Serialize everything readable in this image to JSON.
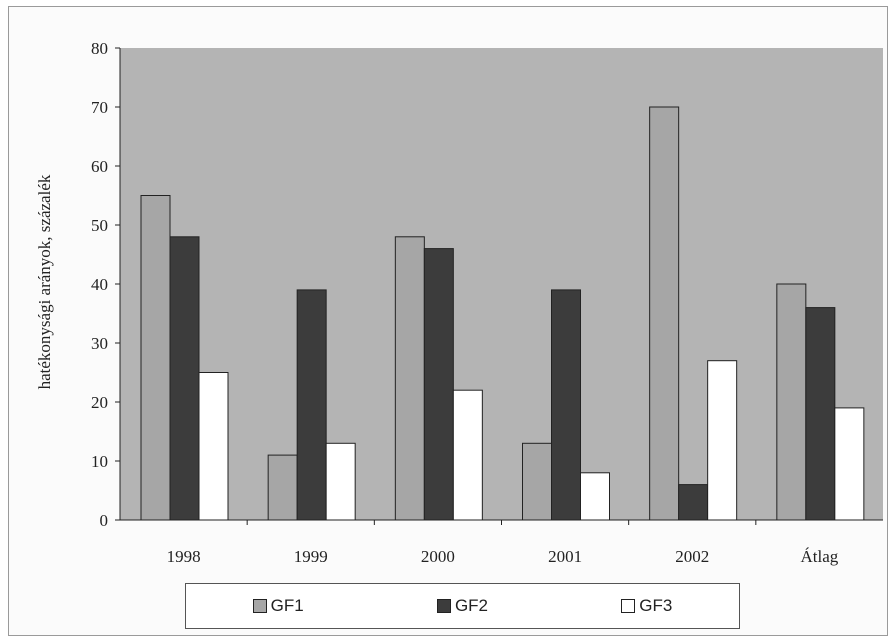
{
  "chart_data": {
    "type": "bar",
    "title": "",
    "xlabel": "",
    "ylabel": "hatékonysági arányok, százalék",
    "ylim": [
      0,
      80
    ],
    "yticks": [
      "0",
      "10",
      "20",
      "30",
      "40",
      "50",
      "60",
      "70",
      "80"
    ],
    "categories": [
      "1998",
      "1999",
      "2000",
      "2001",
      "2002",
      "Átlag"
    ],
    "series": [
      {
        "name": "GF1",
        "values": [
          55,
          11,
          48,
          13,
          70,
          40
        ],
        "color": "#a6a6a6"
      },
      {
        "name": "GF2",
        "values": [
          48,
          39,
          46,
          39,
          6,
          36
        ],
        "color": "#3c3c3c"
      },
      {
        "name": "GF3",
        "values": [
          25,
          13,
          22,
          8,
          27,
          19
        ],
        "color": "#ffffff"
      }
    ],
    "plot_background": "#b4b4b4",
    "grid": false,
    "legend_position": "bottom"
  }
}
